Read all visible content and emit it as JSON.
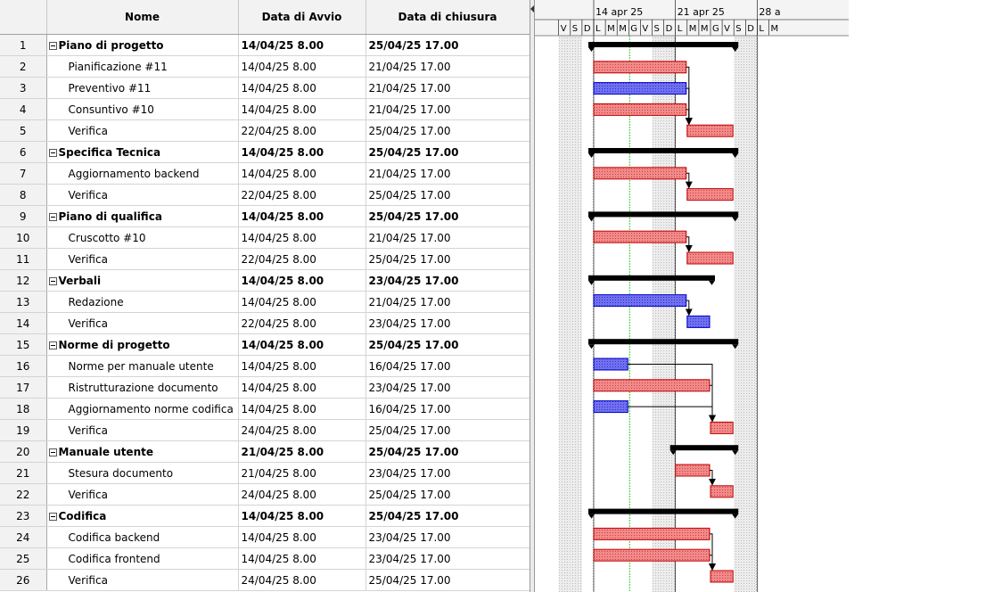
{
  "columns": {
    "id": "",
    "name": "Nome",
    "start": "Data di Avvio",
    "end": "Data di chiusura"
  },
  "tasks": [
    {
      "id": "1",
      "name": "Piano di progetto",
      "start": "14/04/25 8.00",
      "end": "25/04/25 17.00",
      "summary": true,
      "s": 0,
      "e": 11
    },
    {
      "id": "2",
      "name": "Pianificazione #11",
      "start": "14/04/25 8.00",
      "end": "21/04/25 17.00",
      "summary": false,
      "s": 0,
      "e": 7,
      "color": "red"
    },
    {
      "id": "3",
      "name": "Preventivo #11",
      "start": "14/04/25 8.00",
      "end": "21/04/25 17.00",
      "summary": false,
      "s": 0,
      "e": 7,
      "color": "blue"
    },
    {
      "id": "4",
      "name": "Consuntivo #10",
      "start": "14/04/25 8.00",
      "end": "21/04/25 17.00",
      "summary": false,
      "s": 0,
      "e": 7,
      "color": "red"
    },
    {
      "id": "5",
      "name": "Verifica",
      "start": "22/04/25 8.00",
      "end": "25/04/25 17.00",
      "summary": false,
      "s": 8,
      "e": 11,
      "color": "red"
    },
    {
      "id": "6",
      "name": "Specifica Tecnica",
      "start": "14/04/25 8.00",
      "end": "25/04/25 17.00",
      "summary": true,
      "s": 0,
      "e": 11
    },
    {
      "id": "7",
      "name": "Aggiornamento backend",
      "start": "14/04/25 8.00",
      "end": "21/04/25 17.00",
      "summary": false,
      "s": 0,
      "e": 7,
      "color": "red"
    },
    {
      "id": "8",
      "name": "Verifica",
      "start": "22/04/25 8.00",
      "end": "25/04/25 17.00",
      "summary": false,
      "s": 8,
      "e": 11,
      "color": "red"
    },
    {
      "id": "9",
      "name": "Piano di qualifica",
      "start": "14/04/25 8.00",
      "end": "25/04/25 17.00",
      "summary": true,
      "s": 0,
      "e": 11
    },
    {
      "id": "10",
      "name": "Cruscotto #10",
      "start": "14/04/25 8.00",
      "end": "21/04/25 17.00",
      "summary": false,
      "s": 0,
      "e": 7,
      "color": "red"
    },
    {
      "id": "11",
      "name": "Verifica",
      "start": "22/04/25 8.00",
      "end": "25/04/25 17.00",
      "summary": false,
      "s": 8,
      "e": 11,
      "color": "red"
    },
    {
      "id": "12",
      "name": "Verbali",
      "start": "14/04/25 8.00",
      "end": "23/04/25 17.00",
      "summary": true,
      "s": 0,
      "e": 9
    },
    {
      "id": "13",
      "name": "Redazione",
      "start": "14/04/25 8.00",
      "end": "21/04/25 17.00",
      "summary": false,
      "s": 0,
      "e": 7,
      "color": "blue"
    },
    {
      "id": "14",
      "name": "Verifica",
      "start": "22/04/25 8.00",
      "end": "23/04/25 17.00",
      "summary": false,
      "s": 8,
      "e": 9,
      "color": "blue"
    },
    {
      "id": "15",
      "name": "Norme di progetto",
      "start": "14/04/25 8.00",
      "end": "25/04/25 17.00",
      "summary": true,
      "s": 0,
      "e": 11
    },
    {
      "id": "16",
      "name": "Norme per manuale utente",
      "start": "14/04/25 8.00",
      "end": "16/04/25 17.00",
      "summary": false,
      "s": 0,
      "e": 2,
      "color": "blue"
    },
    {
      "id": "17",
      "name": "Ristrutturazione documento",
      "start": "14/04/25 8.00",
      "end": "23/04/25 17.00",
      "summary": false,
      "s": 0,
      "e": 9,
      "color": "red"
    },
    {
      "id": "18",
      "name": "Aggiornamento norme codifica",
      "start": "14/04/25 8.00",
      "end": "16/04/25 17.00",
      "summary": false,
      "s": 0,
      "e": 2,
      "color": "blue"
    },
    {
      "id": "19",
      "name": "Verifica",
      "start": "24/04/25 8.00",
      "end": "25/04/25 17.00",
      "summary": false,
      "s": 10,
      "e": 11,
      "color": "red"
    },
    {
      "id": "20",
      "name": "Manuale utente",
      "start": "21/04/25 8.00",
      "end": "25/04/25 17.00",
      "summary": true,
      "s": 7,
      "e": 11
    },
    {
      "id": "21",
      "name": "Stesura documento",
      "start": "21/04/25 8.00",
      "end": "23/04/25 17.00",
      "summary": false,
      "s": 7,
      "e": 9,
      "color": "red"
    },
    {
      "id": "22",
      "name": "Verifica",
      "start": "24/04/25 8.00",
      "end": "25/04/25 17.00",
      "summary": false,
      "s": 10,
      "e": 11,
      "color": "red"
    },
    {
      "id": "23",
      "name": "Codifica",
      "start": "14/04/25 8.00",
      "end": "25/04/25 17.00",
      "summary": true,
      "s": 0,
      "e": 11
    },
    {
      "id": "24",
      "name": "Codifica backend",
      "start": "14/04/25 8.00",
      "end": "23/04/25 17.00",
      "summary": false,
      "s": 0,
      "e": 9,
      "color": "red"
    },
    {
      "id": "25",
      "name": "Codifica frontend",
      "start": "14/04/25 8.00",
      "end": "23/04/25 17.00",
      "summary": false,
      "s": 0,
      "e": 9,
      "color": "red"
    },
    {
      "id": "26",
      "name": "Verifica",
      "start": "24/04/25 8.00",
      "end": "25/04/25 17.00",
      "summary": false,
      "s": 10,
      "e": 11,
      "color": "red"
    }
  ],
  "timescale": {
    "weeks": [
      {
        "label": "14 apr 25",
        "day": 0
      },
      {
        "label": "21 apr 25",
        "day": 7
      },
      {
        "label": "28 a",
        "day": 14
      }
    ],
    "first_day_offset": -3,
    "days": [
      "V",
      "S",
      "D",
      "L",
      "M",
      "M",
      "G",
      "V",
      "S",
      "D",
      "L",
      "M",
      "M",
      "G",
      "V",
      "S",
      "D",
      "L",
      "M"
    ],
    "today_day": 3,
    "nonwork_days": [
      -3,
      -2,
      5,
      6,
      12,
      13
    ]
  },
  "links": [
    {
      "from": "2",
      "to": "5"
    },
    {
      "from": "3",
      "to": "5"
    },
    {
      "from": "4",
      "to": "5"
    },
    {
      "from": "7",
      "to": "8"
    },
    {
      "from": "10",
      "to": "11"
    },
    {
      "from": "13",
      "to": "14"
    },
    {
      "from": "16",
      "to": "19"
    },
    {
      "from": "17",
      "to": "19"
    },
    {
      "from": "18",
      "to": "19"
    },
    {
      "from": "21",
      "to": "22"
    },
    {
      "from": "24",
      "to": "26"
    },
    {
      "from": "25",
      "to": "26"
    }
  ],
  "colors": {
    "red_fill": "#f08080",
    "red_border": "#c00000",
    "blue_fill": "#6b6bf0",
    "blue_border": "#0000c0",
    "summary": "#000000",
    "today_line": "#33cc33",
    "grid_line": "#d8d8d8",
    "nonwork": "#e8e8e8"
  }
}
